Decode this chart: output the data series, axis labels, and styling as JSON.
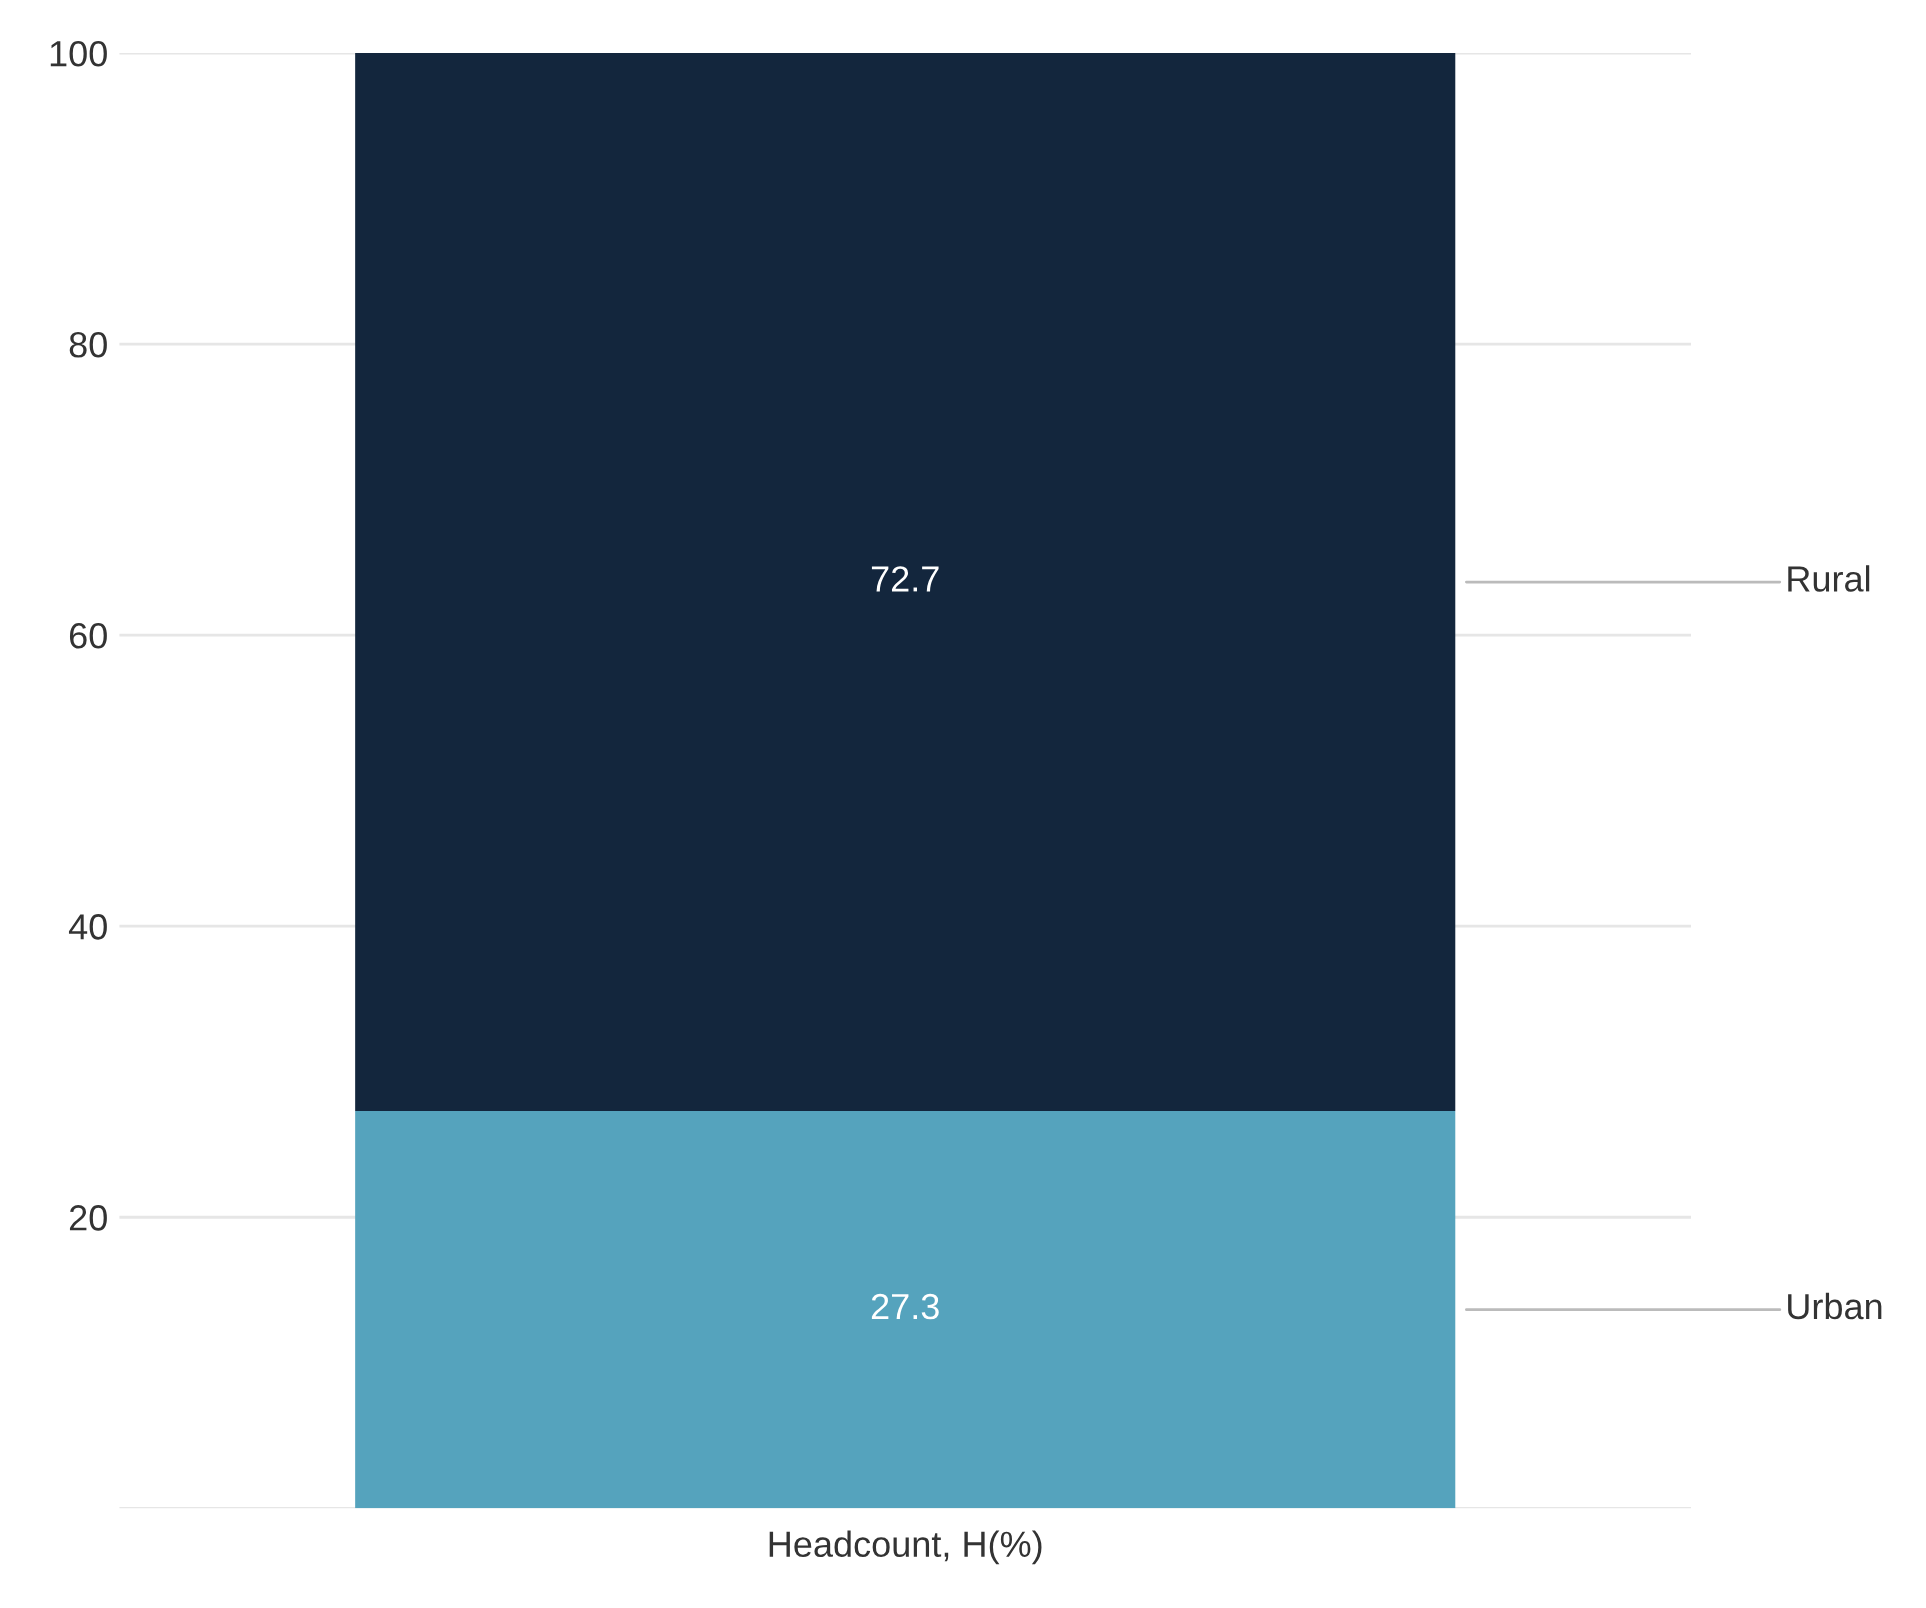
{
  "chart_data": {
    "type": "bar",
    "stacked": true,
    "categories": [
      "Headcount, H(%)"
    ],
    "series": [
      {
        "name": "Urban",
        "color": "#55a3bd",
        "values": [
          27.3
        ]
      },
      {
        "name": "Rural",
        "color": "#13263d",
        "values": [
          72.7
        ]
      }
    ],
    "ylim": [
      0,
      100
    ],
    "yticks": [
      {
        "value": 0,
        "label": null
      },
      20,
      40,
      60,
      80,
      100
    ],
    "grid": "y",
    "legend": false,
    "data_labels": true
  }
}
